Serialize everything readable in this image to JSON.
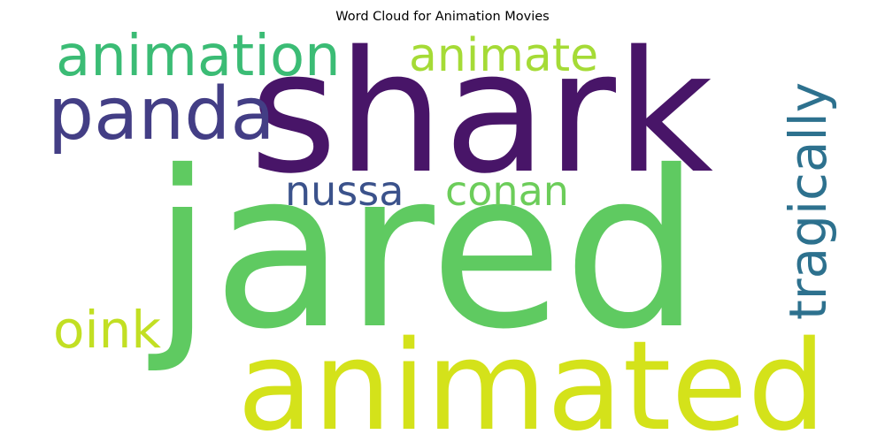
{
  "chart_data": {
    "type": "wordcloud",
    "title": "Word Cloud for Animation Movies",
    "words": [
      {
        "text": "shark",
        "weight": 1.0,
        "color": "#481568",
        "orientation": "horizontal"
      },
      {
        "text": "jared",
        "weight": 0.97,
        "color": "#5fca61",
        "orientation": "horizontal"
      },
      {
        "text": "animated",
        "weight": 0.72,
        "color": "#d4e21a",
        "orientation": "horizontal"
      },
      {
        "text": "panda",
        "weight": 0.38,
        "color": "#433e85",
        "orientation": "horizontal"
      },
      {
        "text": "animation",
        "weight": 0.32,
        "color": "#3bbc75",
        "orientation": "horizontal"
      },
      {
        "text": "animate",
        "weight": 0.26,
        "color": "#a5db36",
        "orientation": "horizontal"
      },
      {
        "text": "tragically",
        "weight": 0.26,
        "color": "#2d718e",
        "orientation": "vertical"
      },
      {
        "text": "oink",
        "weight": 0.26,
        "color": "#c2df23",
        "orientation": "horizontal"
      },
      {
        "text": "nussa",
        "weight": 0.22,
        "color": "#3b528b",
        "orientation": "horizontal"
      },
      {
        "text": "conan",
        "weight": 0.22,
        "color": "#6ccd5a",
        "orientation": "horizontal"
      }
    ]
  }
}
